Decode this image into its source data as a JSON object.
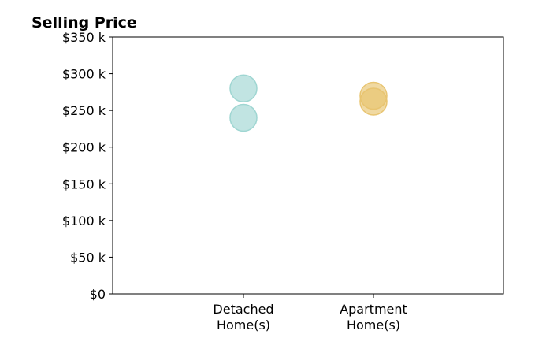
{
  "chart_data": {
    "type": "scatter",
    "title": "Selling Price",
    "xlabel": "",
    "ylabel": "",
    "categories": [
      [
        "Detached",
        "Home(s)"
      ],
      [
        "Apartment",
        "Home(s)"
      ]
    ],
    "ylim": [
      0,
      350000
    ],
    "yticks": [
      0,
      50000,
      100000,
      150000,
      200000,
      250000,
      300000,
      350000
    ],
    "ytick_labels": [
      "$0",
      "$50 k",
      "$100 k",
      "$150 k",
      "$200 k",
      "$250 k",
      "$300 k",
      "$350 k"
    ],
    "grid": false,
    "legend": "none",
    "series": [
      {
        "category": 0,
        "color": "#9fd6d2",
        "values": [
          280000,
          240000
        ]
      },
      {
        "category": 1,
        "color": "#e8c470",
        "values": [
          270000,
          262000
        ]
      }
    ]
  }
}
